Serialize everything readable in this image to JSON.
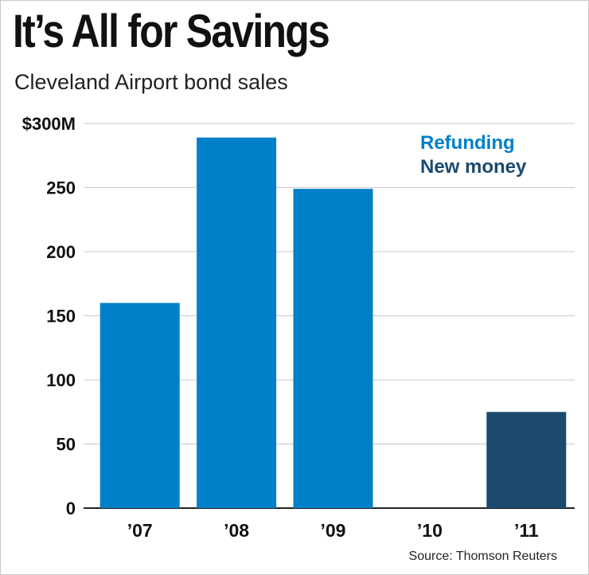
{
  "title": "It’s All for Savings",
  "subtitle": "Cleveland Airport bond sales",
  "source": "Source: Thomson Reuters",
  "colors": {
    "refunding": "#0080c8",
    "new_money": "#1b4a6e",
    "grid": "#c8c8c8",
    "axis": "#222222"
  },
  "chart_data": {
    "type": "bar",
    "categories": [
      "’07",
      "’08",
      "’09",
      "’10",
      "’11"
    ],
    "series": [
      {
        "name": "Refunding",
        "color": "#0080c8",
        "values": [
          160,
          289,
          249,
          0,
          0
        ]
      },
      {
        "name": "New money",
        "color": "#1b4a6e",
        "values": [
          0,
          0,
          0,
          0,
          75
        ]
      }
    ],
    "ylim": [
      0,
      300
    ],
    "yticks": [
      0,
      50,
      100,
      150,
      200,
      250,
      300
    ],
    "ytick_labels": [
      "0",
      "50",
      "100",
      "150",
      "200",
      "250",
      "$300M"
    ],
    "legend": [
      "Refunding",
      "New money"
    ],
    "legend_position": "top-right",
    "grid": true,
    "xlabel": "",
    "ylabel": ""
  }
}
